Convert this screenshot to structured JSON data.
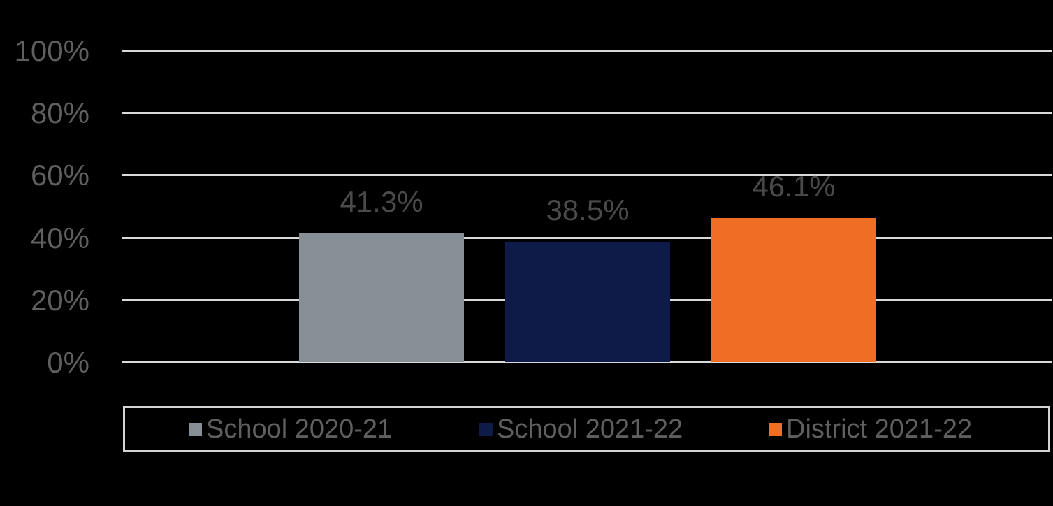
{
  "chart_data": {
    "type": "bar",
    "title": "",
    "xlabel": "",
    "ylabel": "",
    "ylim": [
      0,
      100
    ],
    "yticks": [
      "100%",
      "80%",
      "60%",
      "40%",
      "20%",
      "0%"
    ],
    "grid": true,
    "legend_position": "bottom",
    "categories": [
      "School 2020-21",
      "School 2021-22",
      "District 2021-22"
    ],
    "values": [
      41.3,
      38.5,
      46.1
    ],
    "data_labels": [
      "41.3%",
      "38.5%",
      "46.1%"
    ],
    "colors": [
      "#868e96",
      "#0e1b48",
      "#f06e24"
    ]
  },
  "legend": {
    "items": [
      {
        "label": "School 2020-21",
        "color": "#868e96"
      },
      {
        "label": "School 2021-22",
        "color": "#0e1b48"
      },
      {
        "label": "District 2021-22",
        "color": "#f06e24"
      }
    ]
  },
  "colors": {
    "background": "#000000",
    "gridline": "#d9d9d9",
    "axis_text": "#5f5f5f",
    "data_label_text": "#4a4a4a"
  }
}
